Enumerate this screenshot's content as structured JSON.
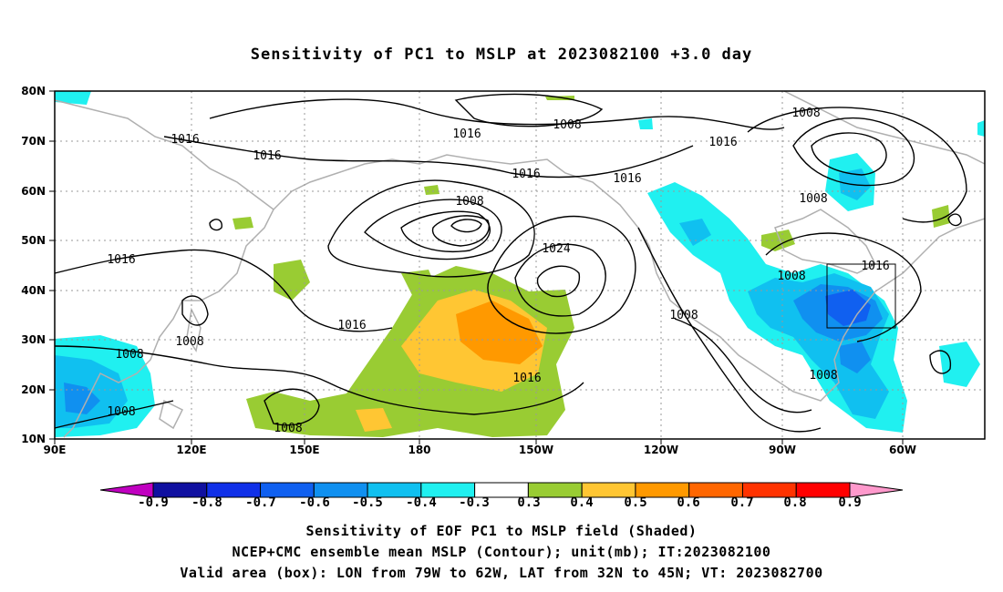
{
  "title": "Sensitivity of PC1 to MSLP at 2023082100 +3.0 day",
  "map": {
    "lon_labels": [
      "90E",
      "120E",
      "150E",
      "180",
      "150W",
      "120W",
      "90W",
      "60W"
    ],
    "lat_labels": [
      "80N",
      "70N",
      "60N",
      "50N",
      "40N",
      "30N",
      "20N",
      "10N"
    ],
    "contour_labels": [
      "1016",
      "1016",
      "1008",
      "1016",
      "1016",
      "1016",
      "1008",
      "1008",
      "1024",
      "1016",
      "1016",
      "1008",
      "1008",
      "1008",
      "1016",
      "1008",
      "1008",
      "1008",
      "1008",
      "1016",
      "1008",
      "1016"
    ],
    "valid_box": {
      "lon_from": "79W",
      "lon_to": "62W",
      "lat_from": "32N",
      "lat_to": "45N"
    }
  },
  "colorbar": {
    "labels": [
      "-0.9",
      "-0.8",
      "-0.7",
      "-0.6",
      "-0.5",
      "-0.4",
      "-0.3",
      "0.3",
      "0.4",
      "0.5",
      "0.6",
      "0.7",
      "0.8",
      "0.9"
    ],
    "colors": [
      "#c000c0",
      "#1010a0",
      "#1030e8",
      "#1060f0",
      "#1090f0",
      "#10c0f0",
      "#20f0f0",
      "#ffffff",
      "#99cc33",
      "#ffc633",
      "#ff9900",
      "#ff6600",
      "#ff3300",
      "#ff0000",
      "#ff99cc"
    ]
  },
  "captions": {
    "line1": "Sensitivity of EOF PC1 to MSLP field (Shaded)",
    "line2": "NCEP+CMC ensemble mean MSLP (Contour); unit(mb); IT:2023082100",
    "line3": "Valid area (box): LON from 79W to 62W, LAT from 32N to 45N; VT: 2023082700"
  }
}
